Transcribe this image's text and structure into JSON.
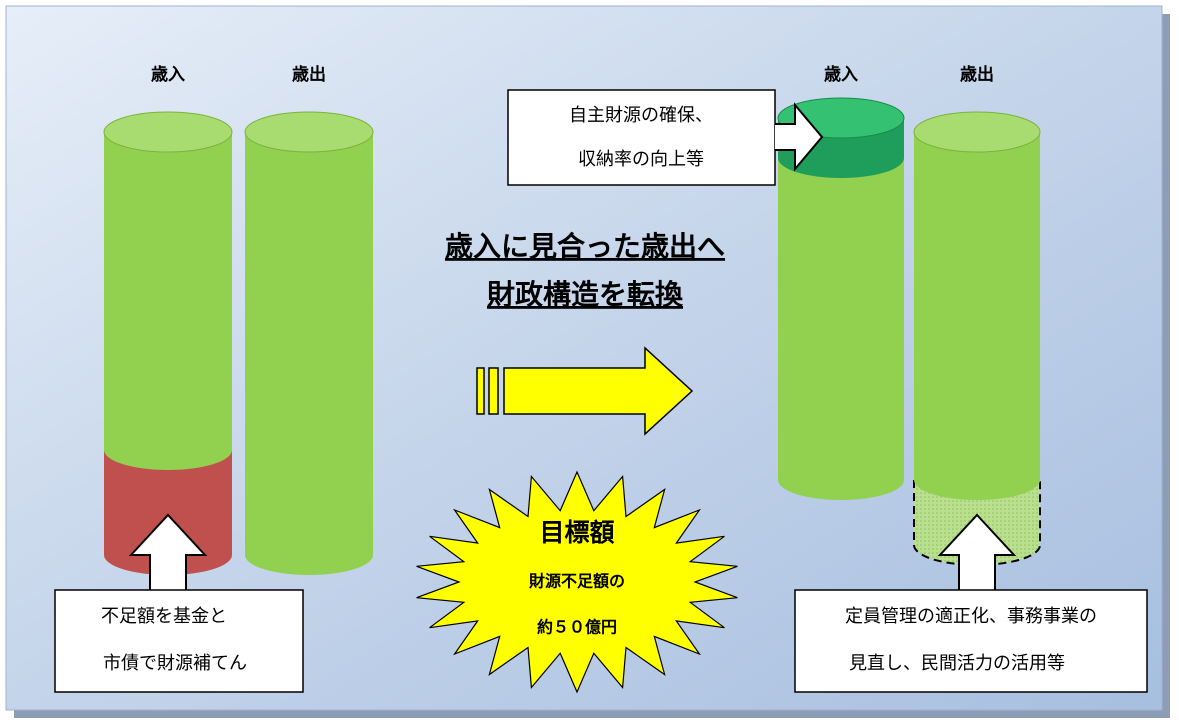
{
  "left": {
    "revenue_label": "歳入",
    "expenditure_label": "歳出",
    "note": [
      "不足額を基金と",
      "市債で財源補てん"
    ]
  },
  "right": {
    "revenue_label": "歳入",
    "expenditure_label": "歳出",
    "revenue_note": [
      "自主財源の確保、",
      "収納率の向上等"
    ],
    "expenditure_note": [
      "定員管理の適正化、事務事業の",
      "見直し、民間活力の活用等"
    ]
  },
  "center": {
    "headline": [
      "歳入に見合った歳出へ",
      "財政構造を転換"
    ]
  },
  "target": {
    "title": "目標額",
    "lines": [
      "財源不足額の",
      "約５０億円"
    ]
  }
}
